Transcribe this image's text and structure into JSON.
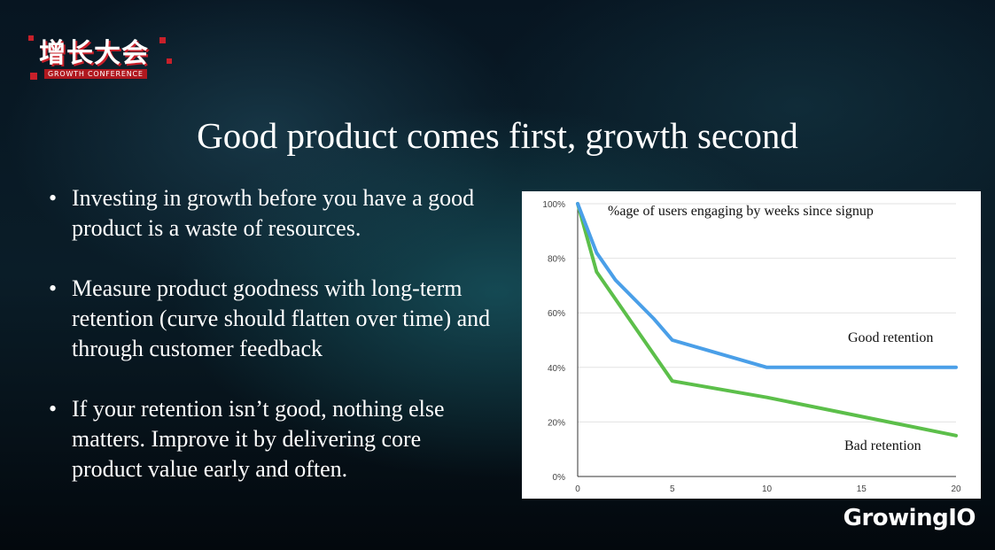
{
  "logo": {
    "cn": "增长大会",
    "en": "GROWTH CONFERENCE"
  },
  "title": "Good product comes first, growth second",
  "bullets": [
    "Investing in growth before you have a good product is a waste of resources.",
    "Measure product goodness with long-term retention (curve should flatten over time) and through customer feedback",
    "If your retention isn’t good, nothing else matters. Improve it by delivering core product value early and often."
  ],
  "brand": "GrowingIO",
  "colors": {
    "good": "#4a9fe8",
    "bad": "#5cbf4a",
    "accent": "#c8202a"
  },
  "chart_data": {
    "type": "line",
    "title": "%age of users engaging by weeks since signup",
    "xlabel": "",
    "ylabel": "",
    "xlim": [
      0,
      20
    ],
    "ylim": [
      0,
      100
    ],
    "x_ticks": [
      0,
      5,
      10,
      15,
      20
    ],
    "y_ticks": [
      0,
      20,
      40,
      60,
      80,
      100
    ],
    "y_tick_labels": [
      "0%",
      "20%",
      "40%",
      "60%",
      "80%",
      "100%"
    ],
    "grid": "horizontal",
    "series": [
      {
        "name": "Good retention",
        "color": "#4a9fe8",
        "points": [
          [
            0,
            100
          ],
          [
            1,
            82
          ],
          [
            2,
            72
          ],
          [
            4,
            58
          ],
          [
            5,
            50
          ],
          [
            7,
            46
          ],
          [
            10,
            40
          ],
          [
            15,
            40
          ],
          [
            20,
            40
          ]
        ]
      },
      {
        "name": "Bad retention",
        "color": "#5cbf4a",
        "points": [
          [
            0,
            100
          ],
          [
            1,
            75
          ],
          [
            3,
            55
          ],
          [
            5,
            35
          ],
          [
            10,
            29
          ],
          [
            15,
            22
          ],
          [
            20,
            15
          ]
        ]
      }
    ]
  }
}
